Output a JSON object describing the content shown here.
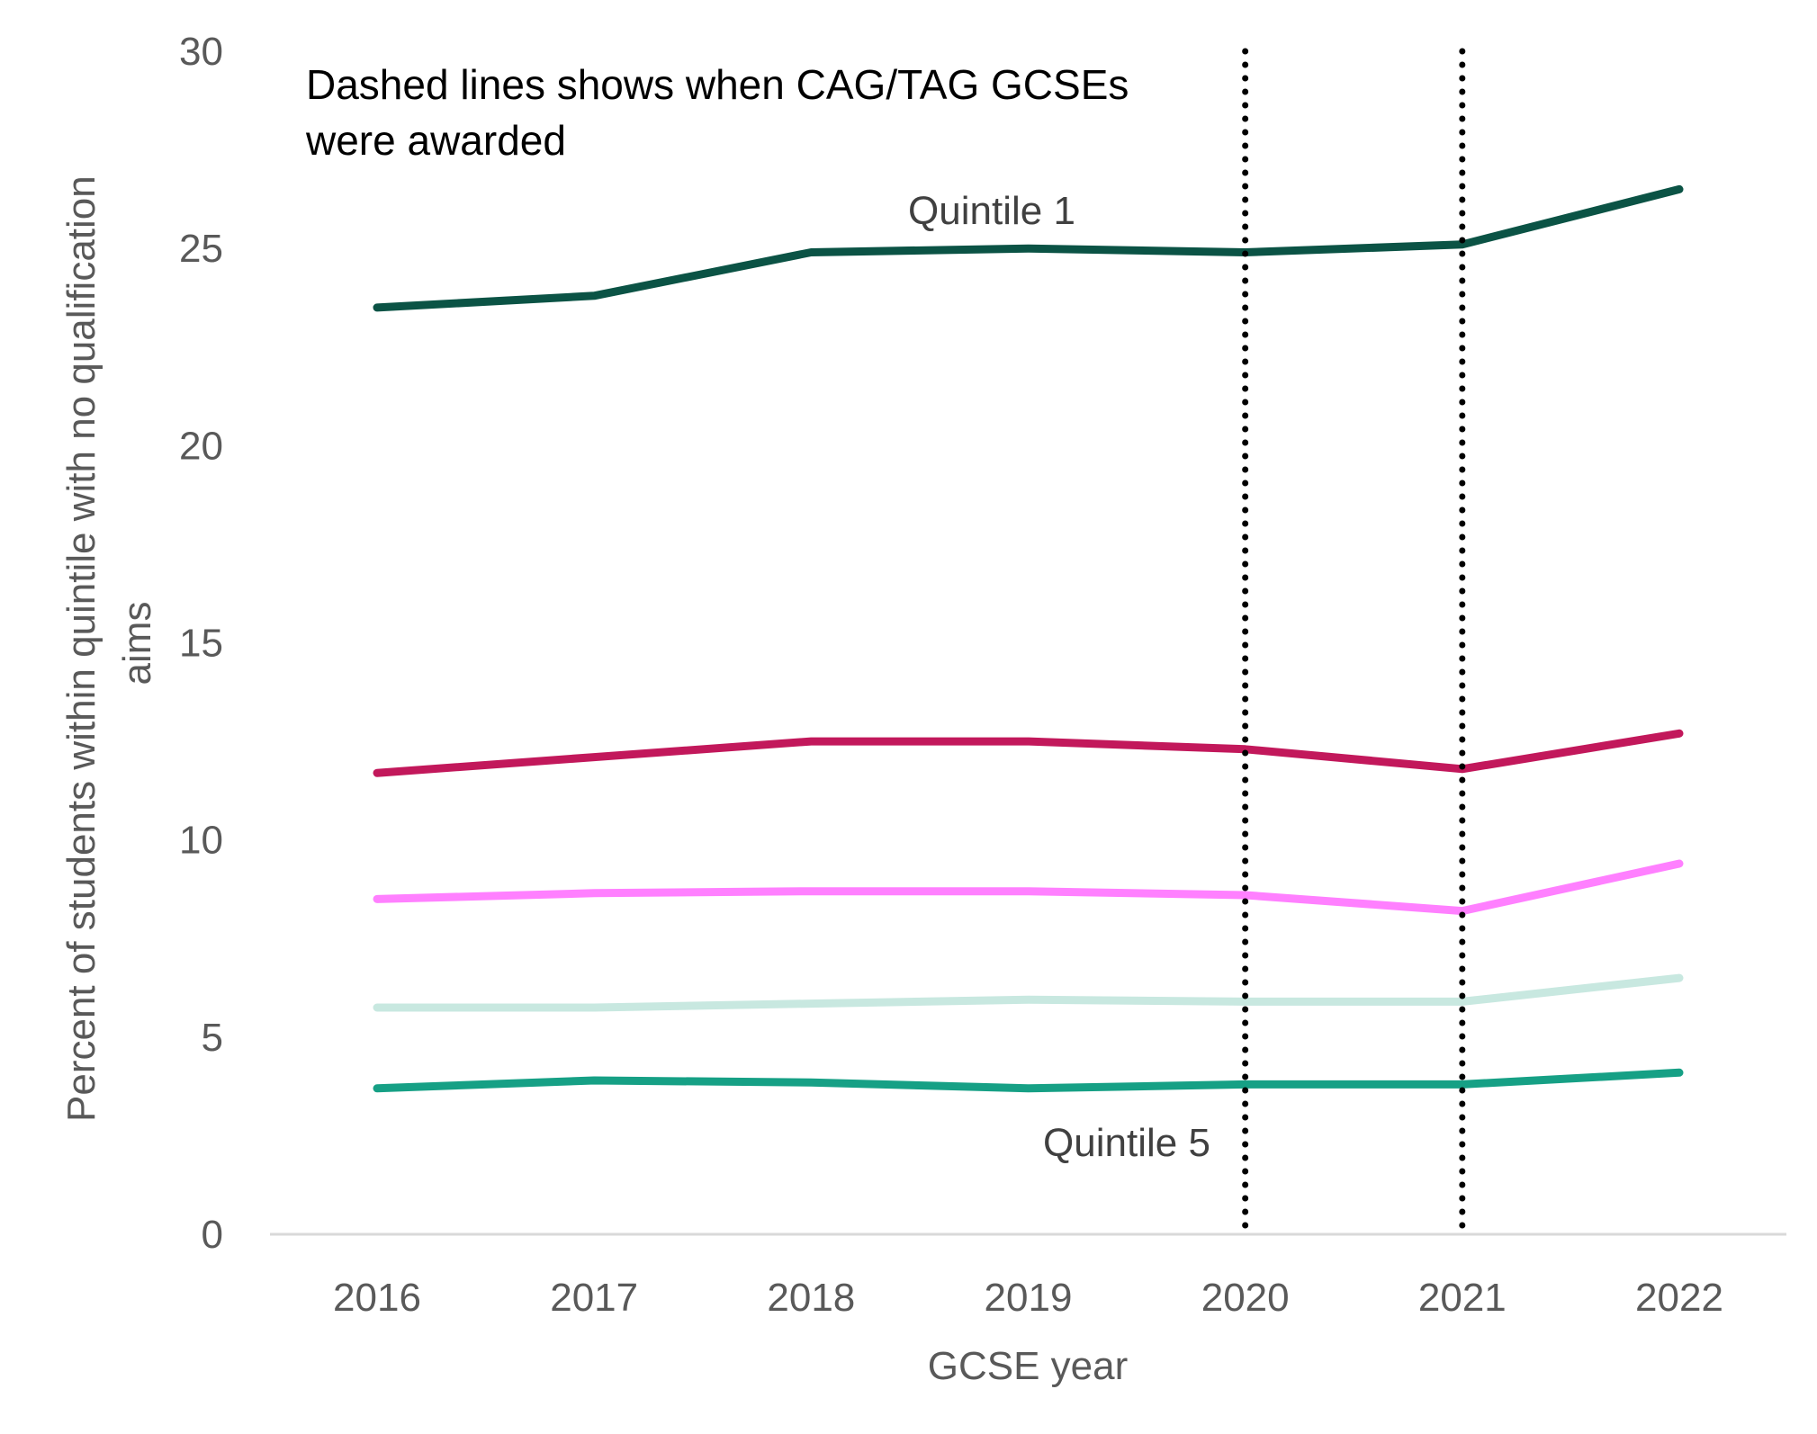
{
  "chart_data": {
    "type": "line",
    "title": "",
    "xlabel": "GCSE year",
    "ylabel_lines": [
      "Percent of students within quintile with no qualification",
      "aims"
    ],
    "x": [
      "2016",
      "2017",
      "2018",
      "2019",
      "2020",
      "2021",
      "2022"
    ],
    "ylim": [
      0,
      30
    ],
    "yticks": [
      0,
      5,
      10,
      15,
      20,
      25,
      30
    ],
    "grid": false,
    "series": [
      {
        "name": "Quintile 1",
        "color": "#0b5345",
        "values": [
          23.5,
          23.8,
          24.9,
          25.0,
          24.9,
          25.1,
          26.5
        ]
      },
      {
        "name": "",
        "color": "#c2185b",
        "values": [
          11.7,
          12.1,
          12.5,
          12.5,
          12.3,
          11.8,
          12.7
        ]
      },
      {
        "name": "",
        "color": "#ff80ff",
        "values": [
          8.5,
          8.65,
          8.7,
          8.7,
          8.6,
          8.2,
          9.4
        ]
      },
      {
        "name": "",
        "color": "#c8e8e0",
        "values": [
          5.75,
          5.75,
          5.85,
          5.95,
          5.9,
          5.9,
          6.5
        ]
      },
      {
        "name": "Quintile 5",
        "color": "#16a085",
        "values": [
          3.7,
          3.9,
          3.85,
          3.7,
          3.8,
          3.8,
          4.1
        ]
      }
    ],
    "vlines": [
      {
        "x": "2020",
        "style": "dotted",
        "color": "#000000"
      },
      {
        "x": "2021",
        "style": "dotted",
        "color": "#000000"
      }
    ],
    "annotations": {
      "cag_tag_lines": [
        "Dashed lines shows when CAG/TAG GCSEs",
        "were awarded"
      ],
      "quintile1_label": "Quintile 1",
      "quintile5_label": "Quintile 5"
    }
  }
}
